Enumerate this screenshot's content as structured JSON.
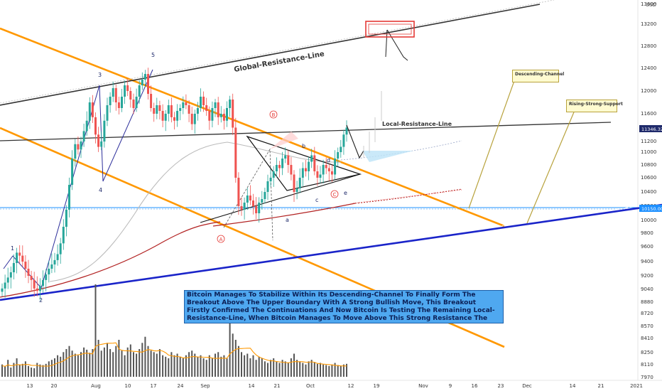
{
  "chart_data": {
    "type": "candlestick",
    "currency": "USD",
    "y_ticks": [
      13600,
      13200,
      12800,
      12400,
      12000,
      11600,
      11200,
      11000,
      10800,
      10600,
      10400,
      10200,
      10000,
      9800,
      9600,
      9400,
      9200,
      9040,
      8880,
      8720,
      8570,
      8410,
      8250,
      8110,
      7970
    ],
    "x_ticks": [
      "13",
      "20",
      "Aug",
      "10",
      "17",
      "24",
      "Sep",
      "14",
      "21",
      "Oct",
      "12",
      "19",
      "Nov",
      "9",
      "16",
      "23",
      "Dec",
      "14",
      "21",
      "2021"
    ],
    "price_labels": [
      {
        "text": "11346.32",
        "value": 11346.32,
        "color": "#1f2a6b"
      },
      {
        "text": "10150.00",
        "value": 10150,
        "color": "#1e90ff"
      }
    ],
    "series_close": [
      9050,
      9120,
      9180,
      9250,
      9380,
      9520,
      9480,
      9400,
      9300,
      9200,
      9150,
      9050,
      9020,
      9080,
      9150,
      9220,
      9300,
      9360,
      9420,
      9500,
      9650,
      9900,
      10150,
      10500,
      10900,
      11150,
      11050,
      11200,
      11350,
      11500,
      11800,
      11550,
      11300,
      11100,
      11200,
      11500,
      11750,
      11900,
      12050,
      11800,
      11700,
      11900,
      12100,
      12000,
      11850,
      11700,
      11900,
      12100,
      12200,
      12300,
      11950,
      11700,
      11600,
      11750,
      11650,
      11500,
      11600,
      11750,
      11550,
      11500,
      11650,
      11700,
      11800,
      11750,
      11600,
      11450,
      11600,
      11700,
      11900,
      11750,
      11650,
      11500,
      11700,
      11800,
      11550,
      11600,
      11500,
      11700,
      11850,
      11400,
      10600,
      10200,
      10150,
      10250,
      10350,
      10280,
      10200,
      10100,
      10250,
      10300,
      10400,
      10550,
      10600,
      10700,
      10800,
      10750,
      10900,
      10950,
      10800,
      10650,
      10400,
      10450,
      10600,
      10750,
      10700,
      10850,
      10950,
      10700,
      10600,
      10650,
      10800,
      10750,
      10700,
      10650,
      10900,
      11000,
      11100,
      11300,
      11400
    ],
    "volume": [
      40,
      35,
      55,
      30,
      45,
      60,
      38,
      42,
      50,
      35,
      30,
      28,
      45,
      40,
      38,
      42,
      50,
      55,
      60,
      70,
      65,
      80,
      90,
      100,
      85,
      75,
      70,
      80,
      95,
      88,
      78,
      90,
      300,
      120,
      85,
      95,
      110,
      90,
      80,
      100,
      120,
      85,
      70,
      95,
      105,
      80,
      75,
      90,
      110,
      130,
      100,
      85,
      80,
      75,
      90,
      70,
      65,
      60,
      80,
      70,
      75,
      65,
      60,
      70,
      80,
      85,
      75,
      65,
      70,
      60,
      55,
      70,
      60,
      75,
      80,
      65,
      70,
      60,
      180,
      140,
      120,
      100,
      80,
      70,
      75,
      60,
      70,
      55,
      65,
      60,
      50,
      45,
      55,
      60,
      50,
      45,
      55,
      50,
      45,
      60,
      75,
      55,
      50,
      45,
      40,
      50,
      55,
      48,
      42,
      45,
      40,
      38,
      35,
      40,
      45,
      38,
      35,
      40,
      42
    ],
    "annotations": {
      "global_resistance": "Global-Resistance-Line",
      "local_resistance": "Local-Resistance-Line",
      "descending_channel": "Descending-Channel",
      "rising_support": "Rising-Strong-Support",
      "wave_labels": [
        "1",
        "2",
        "3",
        "4",
        "5",
        "a",
        "b",
        "c",
        "d",
        "e"
      ],
      "circled_labels": [
        "A",
        "B",
        "C"
      ],
      "description": "Bitcoin Manages To Stabilize Within Its Descending-Channel To Finally Form The Breakout Above The Upper Boundary With A Strong Bullish Move, This Breakout Firstly Confirmed The Continuations And Now Bitcoin Is Testing The Remaining Local-Resistance-Line, When Bitcoin Manages To Move Above This Strong Resistance The Continuation To The Next Higher Resistance Will Show Up, Which Is In This Case The Global-Resistance-Line Higher In Structure."
    },
    "colors": {
      "up": "#26a69a",
      "down": "#ef5350",
      "channel": "#ff9800",
      "support": "#1a24c9",
      "resistance": "#333333",
      "ma": "#b22222"
    }
  }
}
